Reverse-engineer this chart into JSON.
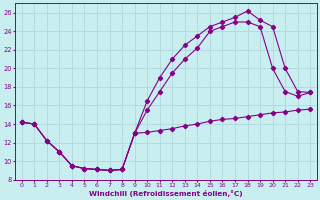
{
  "xlabel": "Windchill (Refroidissement éolien,°C)",
  "bg_color": "#c8eef0",
  "grid_color": "#b0d8dc",
  "line_color": "#880088",
  "xlim": [
    -0.5,
    23.5
  ],
  "ylim": [
    8,
    27
  ],
  "xticks": [
    0,
    1,
    2,
    3,
    4,
    5,
    6,
    7,
    8,
    9,
    10,
    11,
    12,
    13,
    14,
    15,
    16,
    17,
    18,
    19,
    20,
    21,
    22,
    23
  ],
  "yticks": [
    8,
    10,
    12,
    14,
    16,
    18,
    20,
    22,
    24,
    26
  ],
  "curve1_x": [
    0,
    1,
    2,
    3,
    4,
    5,
    6,
    7,
    8,
    9,
    10,
    11,
    12,
    13,
    14,
    15,
    16,
    17,
    18,
    19,
    20,
    21,
    22,
    23
  ],
  "curve1_y": [
    14.2,
    14.0,
    12.2,
    11.0,
    9.5,
    9.2,
    9.1,
    9.0,
    9.1,
    13.0,
    13.1,
    13.3,
    13.5,
    13.8,
    14.0,
    14.3,
    14.5,
    14.6,
    14.8,
    15.0,
    15.2,
    15.3,
    15.5,
    15.6
  ],
  "curve2_x": [
    0,
    1,
    2,
    3,
    4,
    5,
    6,
    7,
    8,
    9,
    10,
    11,
    12,
    13,
    14,
    15,
    16,
    17,
    18,
    19,
    20,
    21,
    22,
    23
  ],
  "curve2_y": [
    14.2,
    14.0,
    12.2,
    11.0,
    9.5,
    9.2,
    9.1,
    9.0,
    9.1,
    13.0,
    16.5,
    19.0,
    21.0,
    22.5,
    23.5,
    24.5,
    25.0,
    25.5,
    26.2,
    25.2,
    24.5,
    20.0,
    17.5,
    17.4
  ],
  "curve3_x": [
    0,
    1,
    2,
    3,
    4,
    5,
    6,
    7,
    8,
    9,
    10,
    11,
    12,
    13,
    14,
    15,
    16,
    17,
    18,
    19,
    20,
    21,
    22,
    23
  ],
  "curve3_y": [
    14.2,
    14.0,
    12.2,
    11.0,
    9.5,
    9.2,
    9.1,
    9.0,
    9.1,
    13.0,
    15.5,
    17.5,
    19.5,
    21.0,
    22.2,
    24.0,
    24.5,
    25.0,
    25.0,
    24.5,
    20.0,
    17.5,
    17.0,
    17.4
  ]
}
